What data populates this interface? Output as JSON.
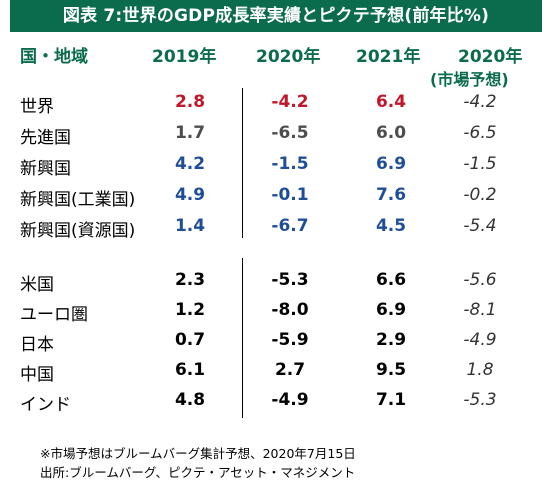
{
  "title": "図表 7:世界のGDP成長率実績とピクテ予想(前年比%)",
  "header": {
    "region": "国・地域",
    "col_2019": "2019年",
    "col_2020": "2020年",
    "col_2021": "2021年",
    "col_consensus": "2020年",
    "col_consensus_sub": "(市場予想)"
  },
  "colors": {
    "title_bg": "#0b6b4d",
    "header_text": "#0b6b4d",
    "red": "#c0182a",
    "blue": "#1f4e99",
    "gray": "#4d4d4d"
  },
  "chart_data": {
    "type": "table",
    "columns": [
      "2019年",
      "2020年",
      "2021年",
      "2020年(市場予想)"
    ],
    "rows": [
      {
        "label": "世界",
        "values": [
          "2.8",
          "-4.2",
          "6.4",
          "-4.2"
        ],
        "color": "red"
      },
      {
        "label": "先進国",
        "values": [
          "1.7",
          "-6.5",
          "6.0",
          "-6.5"
        ],
        "color": "gray"
      },
      {
        "label": "新興国",
        "values": [
          "4.2",
          "-1.5",
          "6.9",
          "-1.5"
        ],
        "color": "blue"
      },
      {
        "label": "新興国(工業国)",
        "values": [
          "4.9",
          "-0.1",
          "7.6",
          "-0.2"
        ],
        "color": "blue"
      },
      {
        "label": "新興国(資源国)",
        "values": [
          "1.4",
          "-6.7",
          "4.5",
          "-5.4"
        ],
        "color": "blue"
      },
      {
        "label": "米国",
        "values": [
          "2.3",
          "-5.3",
          "6.6",
          "-5.6"
        ],
        "color": "black"
      },
      {
        "label": "ユーロ圏",
        "values": [
          "1.2",
          "-8.0",
          "6.9",
          "-8.1"
        ],
        "color": "black"
      },
      {
        "label": "日本",
        "values": [
          "0.7",
          "-5.9",
          "2.9",
          "-4.9"
        ],
        "color": "black"
      },
      {
        "label": "中国",
        "values": [
          "6.1",
          "2.7",
          "9.5",
          "1.8"
        ],
        "color": "black"
      },
      {
        "label": "インド",
        "values": [
          "4.8",
          "-4.9",
          "7.1",
          "-5.3"
        ],
        "color": "black"
      }
    ]
  },
  "footnotes": [
    "※市場予想はブルームバーグ集計予想、2020年7月15日",
    "出所:ブルームバーグ、ピクテ・アセット・マネジメント"
  ]
}
